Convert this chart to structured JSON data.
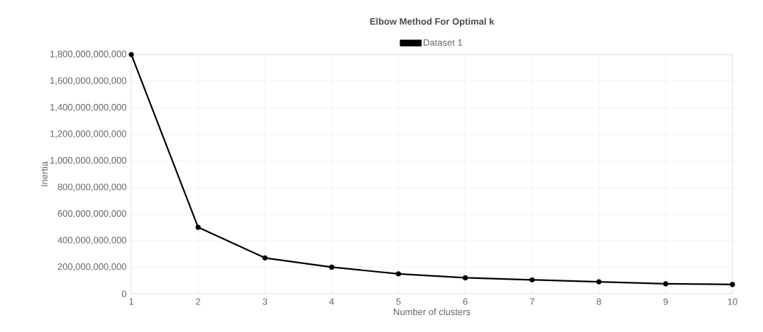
{
  "chart_data": {
    "type": "line",
    "title": "Elbow Method For Optimal k",
    "xlabel": "Number of clusters",
    "ylabel": "Inertia",
    "x": [
      1,
      2,
      3,
      4,
      5,
      6,
      7,
      8,
      9,
      10
    ],
    "series": [
      {
        "name": "Dataset 1",
        "color": "#000000",
        "values": [
          1800000000000,
          500000000000,
          270000000000,
          200000000000,
          150000000000,
          120000000000,
          105000000000,
          90000000000,
          75000000000,
          70000000000
        ]
      }
    ],
    "xlim": [
      1,
      10
    ],
    "xticks": [
      1,
      2,
      3,
      4,
      5,
      6,
      7,
      8,
      9,
      10
    ],
    "ylim": [
      0,
      1800000000000
    ],
    "yticks": [
      0,
      {
        "value": 200000000000,
        "label": "200,000,000,000"
      },
      {
        "value": 400000000000,
        "label": "400,000,000,000"
      },
      {
        "value": 600000000000,
        "label": "600,000,000,000"
      },
      {
        "value": 800000000000,
        "label": "800,000,000,000"
      },
      {
        "value": 1000000000000,
        "label": "1,000,000,000,000"
      },
      {
        "value": 1200000000000,
        "label": "1,200,000,000,000"
      },
      {
        "value": 1400000000000,
        "label": "1,400,000,000,000"
      },
      {
        "value": 1600000000000,
        "label": "1,600,000,000,000"
      },
      {
        "value": 1800000000000,
        "label": "1,800,000,000,000"
      }
    ],
    "grid": true,
    "legend": "top",
    "marker": "circle",
    "line_style": "solid"
  }
}
